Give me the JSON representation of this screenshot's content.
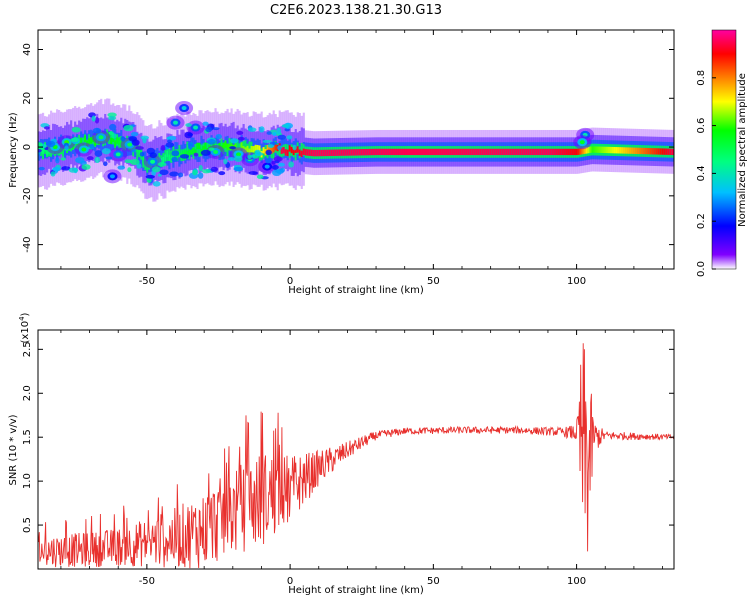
{
  "title": "C2E6.2023.138.21.30.G13",
  "chart_data": [
    {
      "type": "heatmap",
      "name": "spectrogram",
      "xlabel": "Height of straight line (km)",
      "ylabel": "Frequency (Hz)",
      "xlim": [
        -88,
        134
      ],
      "ylim": [
        -50,
        48
      ],
      "xticks": [
        -50,
        0,
        50,
        100
      ],
      "xtick_labels": [
        "-50",
        "0",
        "50",
        "100"
      ],
      "yticks": [
        -40,
        -20,
        0,
        20,
        40
      ],
      "ytick_labels": [
        "-40",
        "-20",
        "0",
        "20",
        "40"
      ],
      "colorbar": {
        "label": "Normalized spectral amplitude",
        "range": [
          0,
          1
        ],
        "ticks": [
          0.0,
          0.2,
          0.4,
          0.6,
          0.8
        ],
        "tick_labels": [
          "0.0",
          "0.2",
          "0.4",
          "0.6",
          "0.8"
        ],
        "colormap": [
          "#ffffff",
          "#8000ff",
          "#0000ff",
          "#00c0ff",
          "#00ff80",
          "#00ff00",
          "#ffff00",
          "#ff8000",
          "#ff0000",
          "#ff00a0"
        ]
      },
      "ridge": {
        "points": [
          [
            -88,
            -2
          ],
          [
            -75,
            1
          ],
          [
            -65,
            4
          ],
          [
            -55,
            0
          ],
          [
            -50,
            -7
          ],
          [
            -45,
            -5
          ],
          [
            -35,
            -1
          ],
          [
            -20,
            0
          ],
          [
            -10,
            -2
          ],
          [
            -3,
            -1
          ],
          [
            0,
            -1.5
          ],
          [
            8,
            -2.5
          ],
          [
            30,
            -2
          ],
          [
            60,
            -2
          ],
          [
            90,
            -2
          ],
          [
            100,
            -2
          ],
          [
            105,
            -1
          ],
          [
            134,
            -2
          ]
        ],
        "amplitude": [
          0.45,
          0.55,
          0.6,
          0.5,
          0.5,
          0.45,
          0.55,
          0.6,
          0.7,
          0.95,
          0.9,
          0.95,
          0.95,
          0.95,
          0.95,
          0.9,
          0.6,
          0.95
        ]
      },
      "blobs": [
        [
          -82,
          0,
          0.55
        ],
        [
          -78,
          2,
          0.6
        ],
        [
          -72,
          -1,
          0.55
        ],
        [
          -66,
          4,
          0.5
        ],
        [
          -60,
          -3,
          0.45
        ],
        [
          -56,
          1,
          0.5
        ],
        [
          -40,
          10,
          0.4
        ],
        [
          -37,
          16,
          0.35
        ],
        [
          -33,
          8,
          0.4
        ],
        [
          -62,
          -12,
          0.3
        ],
        [
          -48,
          -6,
          0.45
        ],
        [
          -26,
          -2,
          0.5
        ],
        [
          -18,
          -3,
          0.55
        ],
        [
          -14,
          -5,
          0.45
        ],
        [
          -8,
          -8,
          0.3
        ],
        [
          103,
          5,
          0.4
        ],
        [
          102,
          2,
          0.55
        ]
      ]
    },
    {
      "type": "line",
      "name": "snr",
      "xlabel": "Height of straight line (km)",
      "ylabel": "SNR (10 * v/v)",
      "y_multiplier": "(x10^4)",
      "xlim": [
        -88,
        134
      ],
      "ylim": [
        0.0,
        2.72
      ],
      "xticks": [
        -50,
        0,
        50,
        100
      ],
      "xtick_labels": [
        "-50",
        "0",
        "50",
        "100"
      ],
      "yticks": [
        0.5,
        1.0,
        1.5,
        2.0,
        2.5
      ],
      "ytick_labels": [
        "0.5",
        "1.0",
        "1.5",
        "2.0",
        "2.5"
      ],
      "color": "#e8302d",
      "envelope": {
        "x": [
          -88,
          -70,
          -60,
          -50,
          -40,
          -30,
          -20,
          -10,
          0,
          10,
          20,
          30,
          40,
          60,
          80,
          95,
          100,
          102,
          104,
          106,
          110,
          134
        ],
        "mean": [
          0.2,
          0.22,
          0.25,
          0.3,
          0.35,
          0.45,
          0.65,
          0.8,
          0.9,
          1.15,
          1.35,
          1.52,
          1.57,
          1.58,
          1.58,
          1.56,
          1.55,
          1.4,
          1.2,
          1.5,
          1.52,
          1.5
        ],
        "spread": [
          0.18,
          0.2,
          0.22,
          0.28,
          0.35,
          0.45,
          0.5,
          0.55,
          0.4,
          0.2,
          0.1,
          0.05,
          0.04,
          0.04,
          0.04,
          0.05,
          0.1,
          1.3,
          1.2,
          0.2,
          0.05,
          0.03
        ]
      }
    }
  ]
}
